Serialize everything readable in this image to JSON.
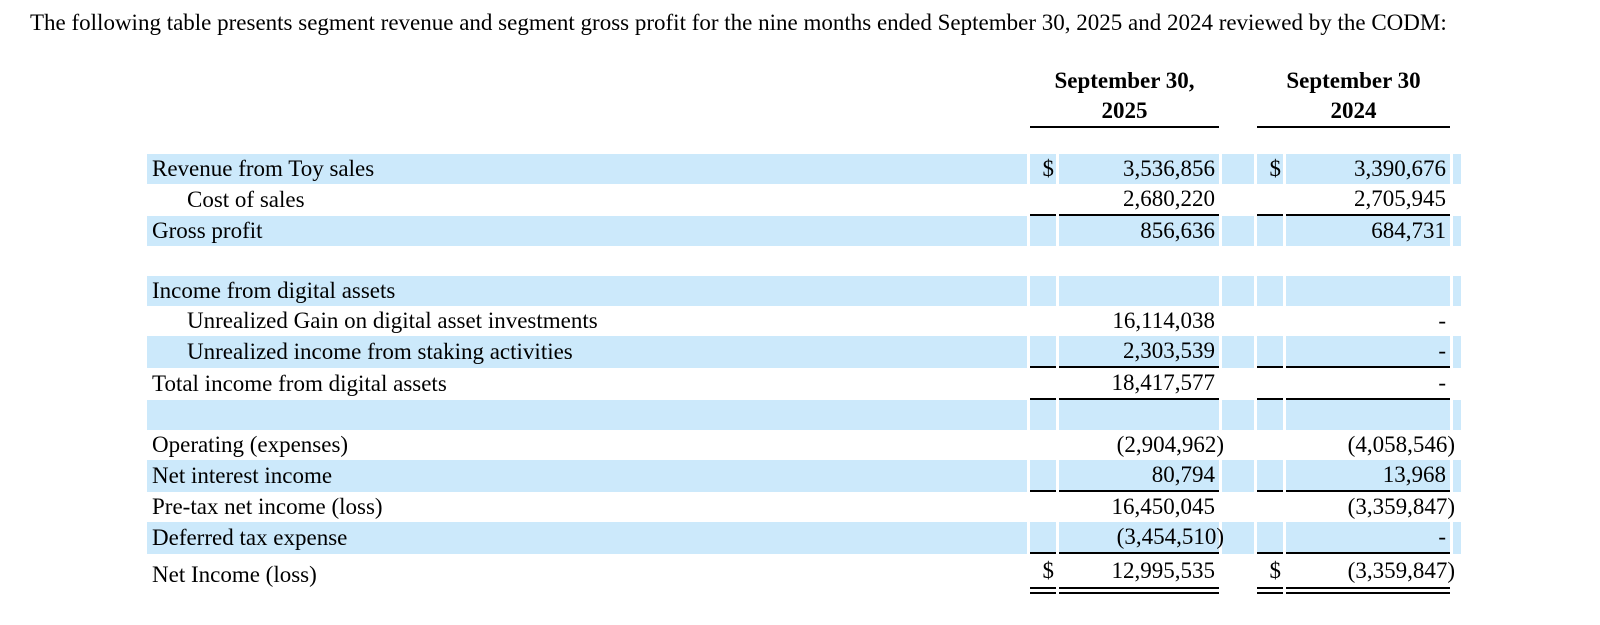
{
  "intro_text": "The following table presents segment revenue and segment gross profit for the nine months ended September 30, 2025 and 2024 reviewed by the CODM:",
  "table": {
    "currency_symbol": "$",
    "highlight_color": "#cce9fb",
    "columns": [
      {
        "line1": "September 30,",
        "line2": "2025"
      },
      {
        "line1": "September 30",
        "line2": "2024"
      }
    ],
    "rows": [
      {
        "label": "Revenue from Toy sales",
        "indent": false,
        "highlight": true,
        "dollar": true,
        "v2025": "3,536,856",
        "v2024": "3,390,676",
        "rule_below": false,
        "double_rule": false
      },
      {
        "label": "Cost of sales",
        "indent": true,
        "highlight": false,
        "dollar": false,
        "v2025": "2,680,220",
        "v2024": "2,705,945",
        "rule_below": true,
        "double_rule": false
      },
      {
        "label": "Gross profit",
        "indent": false,
        "highlight": true,
        "dollar": false,
        "v2025": "856,636",
        "v2024": "684,731",
        "rule_below": false,
        "double_rule": false
      },
      {
        "label": "",
        "indent": false,
        "highlight": false,
        "dollar": false,
        "v2025": "",
        "v2024": "",
        "rule_below": false,
        "double_rule": false
      },
      {
        "label": "Income from digital assets",
        "indent": false,
        "highlight": true,
        "dollar": false,
        "v2025": "",
        "v2024": "",
        "rule_below": false,
        "double_rule": false
      },
      {
        "label": "Unrealized Gain on digital asset investments",
        "indent": true,
        "highlight": false,
        "dollar": false,
        "v2025": "16,114,038",
        "v2024": "-",
        "rule_below": false,
        "double_rule": false
      },
      {
        "label": "Unrealized income from staking activities",
        "indent": true,
        "highlight": true,
        "dollar": false,
        "v2025": "2,303,539",
        "v2024": "-",
        "rule_below": true,
        "double_rule": false
      },
      {
        "label": "Total income from digital assets",
        "indent": false,
        "highlight": false,
        "dollar": false,
        "v2025": "18,417,577",
        "v2024": "-",
        "rule_below": true,
        "double_rule": false
      },
      {
        "label": "",
        "indent": false,
        "highlight": true,
        "dollar": false,
        "v2025": "",
        "v2024": "",
        "rule_below": false,
        "double_rule": false
      },
      {
        "label": "Operating (expenses)",
        "indent": false,
        "highlight": false,
        "dollar": false,
        "v2025": "(2,904,962)",
        "v2024": "(4,058,546)",
        "rule_below": false,
        "double_rule": false
      },
      {
        "label": "Net interest income",
        "indent": false,
        "highlight": true,
        "dollar": false,
        "v2025": "80,794",
        "v2024": "13,968",
        "rule_below": true,
        "double_rule": false
      },
      {
        "label": "Pre-tax net income (loss)",
        "indent": false,
        "highlight": false,
        "dollar": false,
        "v2025": "16,450,045",
        "v2024": "(3,359,847)",
        "rule_below": false,
        "double_rule": false
      },
      {
        "label": "Deferred tax expense",
        "indent": false,
        "highlight": true,
        "dollar": false,
        "v2025": "(3,454,510)",
        "v2024": "-",
        "rule_below": true,
        "double_rule": false
      },
      {
        "label": "Net Income (loss)",
        "indent": false,
        "highlight": false,
        "dollar": true,
        "v2025": "12,995,535",
        "v2024": "(3,359,847)",
        "rule_below": false,
        "double_rule": true
      }
    ]
  }
}
